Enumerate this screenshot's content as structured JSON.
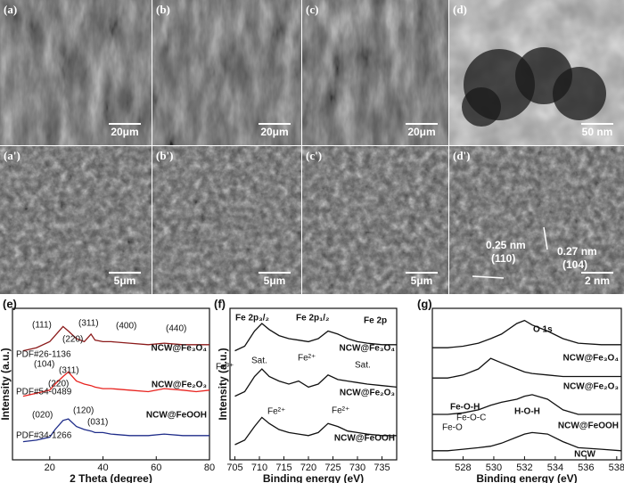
{
  "images": [
    {
      "label": "(a)",
      "scale_bar": "20μm"
    },
    {
      "label": "(b)",
      "scale_bar": "20μm"
    },
    {
      "label": "(c)",
      "scale_bar": "20μm"
    },
    {
      "label": "(d)",
      "scale_bar": "50 nm"
    },
    {
      "label": "(a')",
      "scale_bar": "5μm"
    },
    {
      "label": "(b')",
      "scale_bar": "5μm"
    },
    {
      "label": "(c')",
      "scale_bar": "5μm"
    },
    {
      "label": "(d')",
      "scale_bar": "2 nm"
    }
  ],
  "lattice_fringes": [
    {
      "spacing": "0.25 nm",
      "plane": "(110)"
    },
    {
      "spacing": "0.27 nm",
      "plane": "(104)"
    }
  ],
  "chart_data": [
    {
      "type": "line",
      "panel_label": "(e)",
      "x_label": "2 Theta (degree)",
      "y_label": "Intensity (a.u.)",
      "x": [
        10,
        15,
        20,
        22,
        25,
        27,
        30,
        33,
        35.5,
        37,
        40,
        43,
        50,
        57,
        63,
        70,
        75,
        80
      ],
      "xlim": [
        6,
        80
      ],
      "xticks": [
        20,
        40,
        60,
        80
      ],
      "ylim": [
        0,
        100
      ],
      "series": [
        {
          "name": "NCW@Fe₃O₄",
          "color": "#8b1a1a",
          "values": [
            72,
            74,
            78,
            82,
            88,
            85,
            80,
            78,
            83,
            79,
            78,
            78,
            77,
            76,
            77,
            76,
            76,
            76
          ]
        },
        {
          "name": "NCW@Fe₂O₃",
          "color": "#e8231f",
          "values": [
            42,
            44,
            46,
            50,
            55,
            58,
            52,
            50,
            49,
            48,
            47,
            47,
            46,
            45,
            47,
            46,
            45,
            46
          ]
        },
        {
          "name": "NCW@FeOOH",
          "color": "#1f2d8a",
          "values": [
            12,
            13,
            15,
            20,
            26,
            27,
            22,
            20,
            19,
            18,
            18,
            17,
            16,
            16,
            17,
            16,
            16,
            16
          ]
        }
      ],
      "annotations": [
        "(111)",
        "(311)",
        "(400)",
        "(440)",
        "(220)",
        "PDF#26-1136",
        "(104)",
        "(311)",
        "(220)",
        "PDF#54-0489",
        "(020)",
        "(120)",
        "(031)",
        "PDF#34-1266"
      ]
    },
    {
      "type": "line",
      "panel_label": "(f)",
      "x_label": "Binding energy (eV)",
      "y_label": "Intensity (a.u.)",
      "x": [
        705,
        707,
        709,
        710.5,
        712,
        714,
        716,
        718,
        720,
        722,
        724,
        726,
        728,
        730,
        732,
        735,
        738
      ],
      "xlim": [
        704,
        738
      ],
      "xticks": [
        705,
        710,
        715,
        720,
        725,
        730,
        735
      ],
      "ylim": [
        0,
        100
      ],
      "series": [
        {
          "name": "NCW@Fe₃O₄",
          "color": "#111111",
          "values": [
            72,
            75,
            85,
            90,
            86,
            82,
            80,
            79,
            78,
            80,
            85,
            83,
            80,
            78,
            77,
            76,
            76
          ]
        },
        {
          "name": "NCW@Fe₂O₃",
          "color": "#111111",
          "values": [
            42,
            45,
            55,
            60,
            55,
            52,
            50,
            52,
            48,
            50,
            56,
            53,
            52,
            51,
            50,
            49,
            48
          ]
        },
        {
          "name": "NCW@FeOOH",
          "color": "#111111",
          "values": [
            10,
            13,
            22,
            28,
            24,
            20,
            18,
            17,
            16,
            18,
            24,
            22,
            19,
            18,
            17,
            16,
            16
          ]
        }
      ],
      "annotations": [
        "Fe 2p₃/₂",
        "Fe 2p₁/₂",
        "Fe 2p",
        "Fe³⁺",
        "Sat.",
        "Fe²⁺",
        "Sat.",
        "Fe²⁺",
        "Fe²⁺"
      ]
    },
    {
      "type": "line",
      "panel_label": "(g)",
      "x_label": "Binding energy (eV)",
      "x": [
        526,
        527,
        528,
        529,
        529.8,
        530.5,
        531.5,
        532,
        532.5,
        533.5,
        534.5,
        535.5,
        537,
        538.3
      ],
      "xlim": [
        526,
        538.3
      ],
      "xticks": [
        528,
        530,
        532,
        534,
        536,
        538
      ],
      "ylim": [
        0,
        100
      ],
      "series": [
        {
          "name": "NCW@Fe₃O₄",
          "color": "#111111",
          "values": [
            74,
            74,
            75,
            77,
            80,
            83,
            90,
            92,
            89,
            85,
            80,
            77,
            76,
            76
          ]
        },
        {
          "name": "NCW@Fe₂O₃",
          "color": "#111111",
          "values": [
            54,
            54,
            56,
            60,
            67,
            64,
            60,
            58,
            57,
            56,
            55,
            55,
            55,
            55
          ]
        },
        {
          "name": "NCW@FeOOH",
          "color": "#111111",
          "values": [
            30,
            30,
            31,
            33,
            36,
            38,
            40,
            42,
            43,
            40,
            33,
            30,
            30,
            30
          ]
        },
        {
          "name": "NCW",
          "color": "#111111",
          "values": [
            6,
            6,
            7,
            8,
            9,
            11,
            15,
            17,
            18,
            17,
            12,
            8,
            7,
            6
          ]
        }
      ],
      "annotations": [
        "O 1s",
        "Fe-O-H",
        "H-O-H",
        "Fe-O-C",
        "Fe-O"
      ]
    }
  ]
}
